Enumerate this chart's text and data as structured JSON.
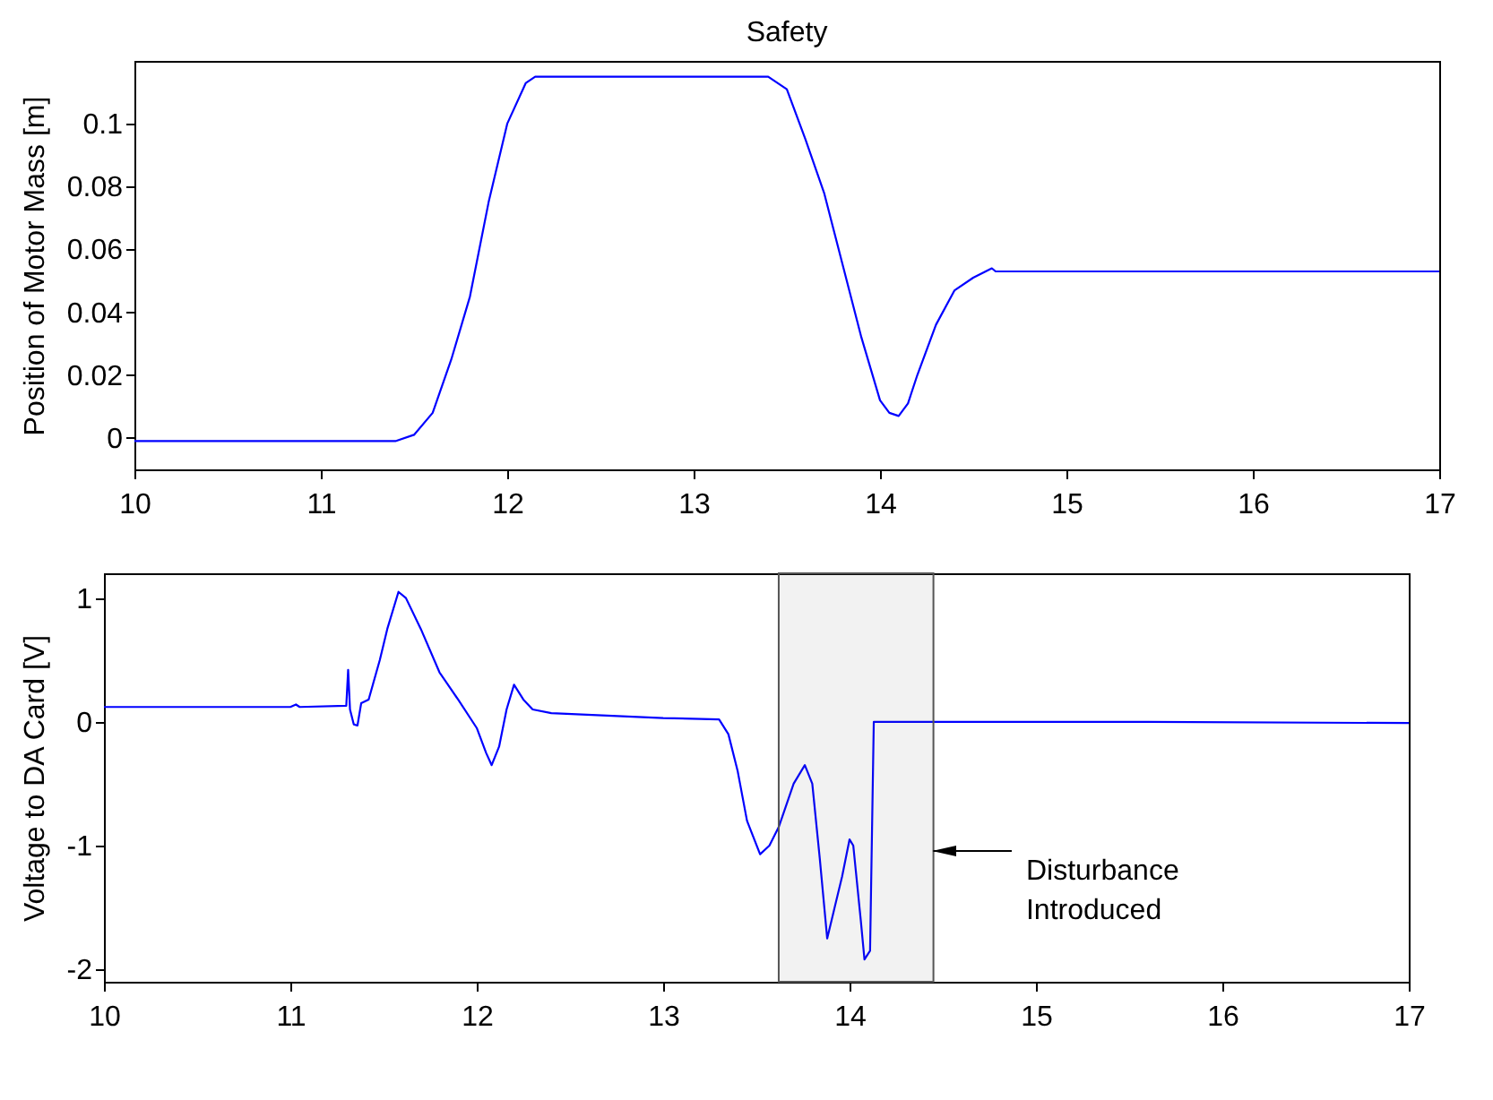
{
  "chart_data": [
    {
      "type": "line",
      "title": "Safety",
      "ylabel": "Position of Motor Mass [m]",
      "xlim": [
        10,
        17
      ],
      "xticks": [
        10,
        11,
        12,
        13,
        14,
        15,
        16,
        17
      ],
      "ylim": [
        -0.01,
        0.12
      ],
      "yticks": [
        0,
        0.02,
        0.04,
        0.06,
        0.08,
        0.1
      ],
      "grid": false,
      "marker": "none",
      "line_style": "solid",
      "series": [
        {
          "color": "#0000ff",
          "x": [
            10,
            11.4,
            11.5,
            11.6,
            11.7,
            11.8,
            11.9,
            12.0,
            12.1,
            12.15,
            13.4,
            13.5,
            13.6,
            13.7,
            13.8,
            13.9,
            14.0,
            14.05,
            14.1,
            14.15,
            14.2,
            14.3,
            14.4,
            14.5,
            14.6,
            14.62,
            17
          ],
          "values": [
            -0.001,
            -0.001,
            0.001,
            0.008,
            0.025,
            0.045,
            0.075,
            0.1,
            0.113,
            0.115,
            0.115,
            0.111,
            0.095,
            0.078,
            0.055,
            0.032,
            0.012,
            0.008,
            0.007,
            0.011,
            0.02,
            0.036,
            0.047,
            0.051,
            0.054,
            0.053,
            0.053
          ]
        }
      ]
    },
    {
      "type": "line",
      "ylabel": "Voltage to DA Card [V]",
      "xlim": [
        10,
        17
      ],
      "xticks": [
        10,
        11,
        12,
        13,
        14,
        15,
        16,
        17
      ],
      "ylim": [
        -2.1,
        1.2
      ],
      "yticks": [
        -2,
        -1,
        0,
        1
      ],
      "grid": false,
      "marker": "none",
      "line_style": "solid",
      "series": [
        {
          "color": "#0000ff",
          "x": [
            10,
            11.0,
            11.03,
            11.05,
            11.3,
            11.31,
            11.32,
            11.34,
            11.36,
            11.38,
            11.42,
            11.48,
            11.52,
            11.58,
            11.62,
            11.7,
            11.8,
            11.9,
            12.0,
            12.05,
            12.08,
            12.12,
            12.16,
            12.2,
            12.25,
            12.3,
            12.4,
            13.0,
            13.3,
            13.35,
            13.4,
            13.45,
            13.52,
            13.57,
            13.62,
            13.7,
            13.76,
            13.8,
            13.84,
            13.88,
            13.92,
            13.96,
            14.0,
            14.02,
            14.06,
            14.08,
            14.11,
            14.13,
            15.6,
            17
          ],
          "values": [
            0.12,
            0.12,
            0.14,
            0.12,
            0.13,
            0.42,
            0.1,
            -0.02,
            -0.03,
            0.15,
            0.18,
            0.5,
            0.75,
            1.05,
            1.0,
            0.75,
            0.4,
            0.18,
            -0.05,
            -0.25,
            -0.35,
            -0.2,
            0.1,
            0.3,
            0.18,
            0.1,
            0.07,
            0.03,
            0.02,
            -0.1,
            -0.4,
            -0.8,
            -1.07,
            -1.0,
            -0.85,
            -0.5,
            -0.35,
            -0.5,
            -1.1,
            -1.75,
            -1.5,
            -1.25,
            -0.95,
            -1.0,
            -1.6,
            -1.92,
            -1.85,
            0.0,
            0.0,
            -0.01
          ]
        }
      ],
      "bands": [
        {
          "axis": "x",
          "from": 13.62,
          "to": 14.45,
          "color": "#555555",
          "label": "Disturbance Introduced"
        }
      ]
    }
  ]
}
